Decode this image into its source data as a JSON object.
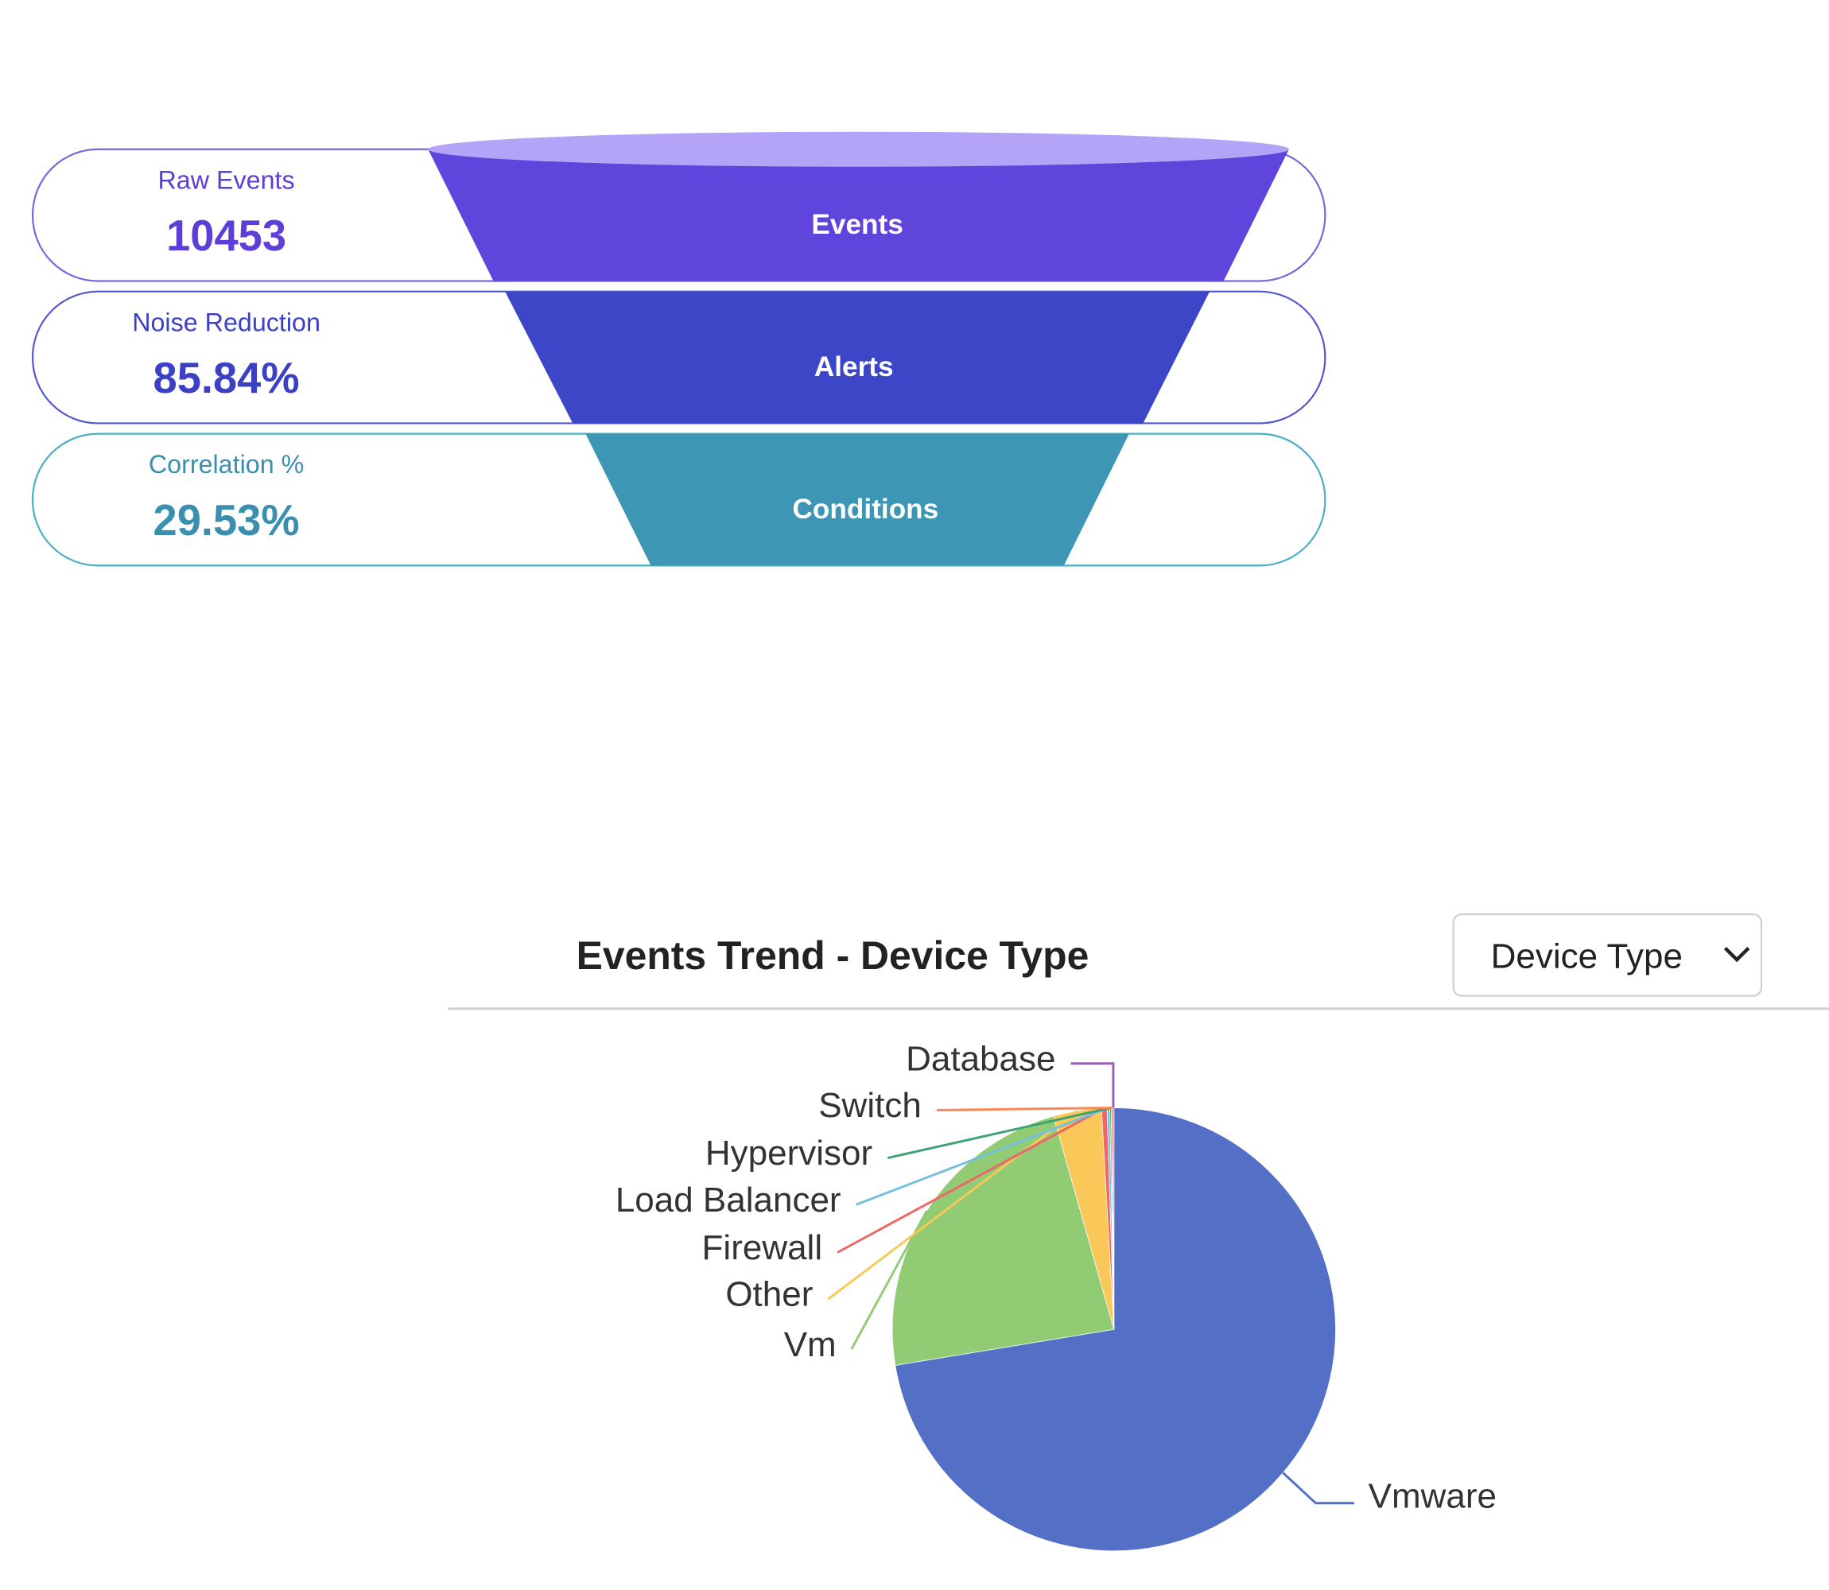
{
  "funnel": {
    "stages": [
      {
        "metric_label": "Raw Events",
        "metric_value": "10453",
        "stage": "Events"
      },
      {
        "metric_label": "Noise Reduction",
        "metric_value": "85.84%",
        "stage": "Alerts"
      },
      {
        "metric_label": "Correlation %",
        "metric_value": "29.53%",
        "stage": "Conditions"
      }
    ]
  },
  "controls": {
    "dropdown": "Device Type"
  },
  "chart_data": {
    "type": "pie",
    "title": "Events Trend - Device Type",
    "categories": [
      "Vmware",
      "Vm",
      "Other",
      "Firewall",
      "Load Balancer",
      "Hypervisor",
      "Switch",
      "Database"
    ],
    "values": [
      72.4,
      23.2,
      3.5,
      0.4,
      0.2,
      0.1,
      0.1,
      0.1
    ],
    "colors": [
      "#5470c6",
      "#91cc75",
      "#fac858",
      "#ee6666",
      "#73c0de",
      "#3ba272",
      "#fc8452",
      "#9a60b4"
    ]
  }
}
